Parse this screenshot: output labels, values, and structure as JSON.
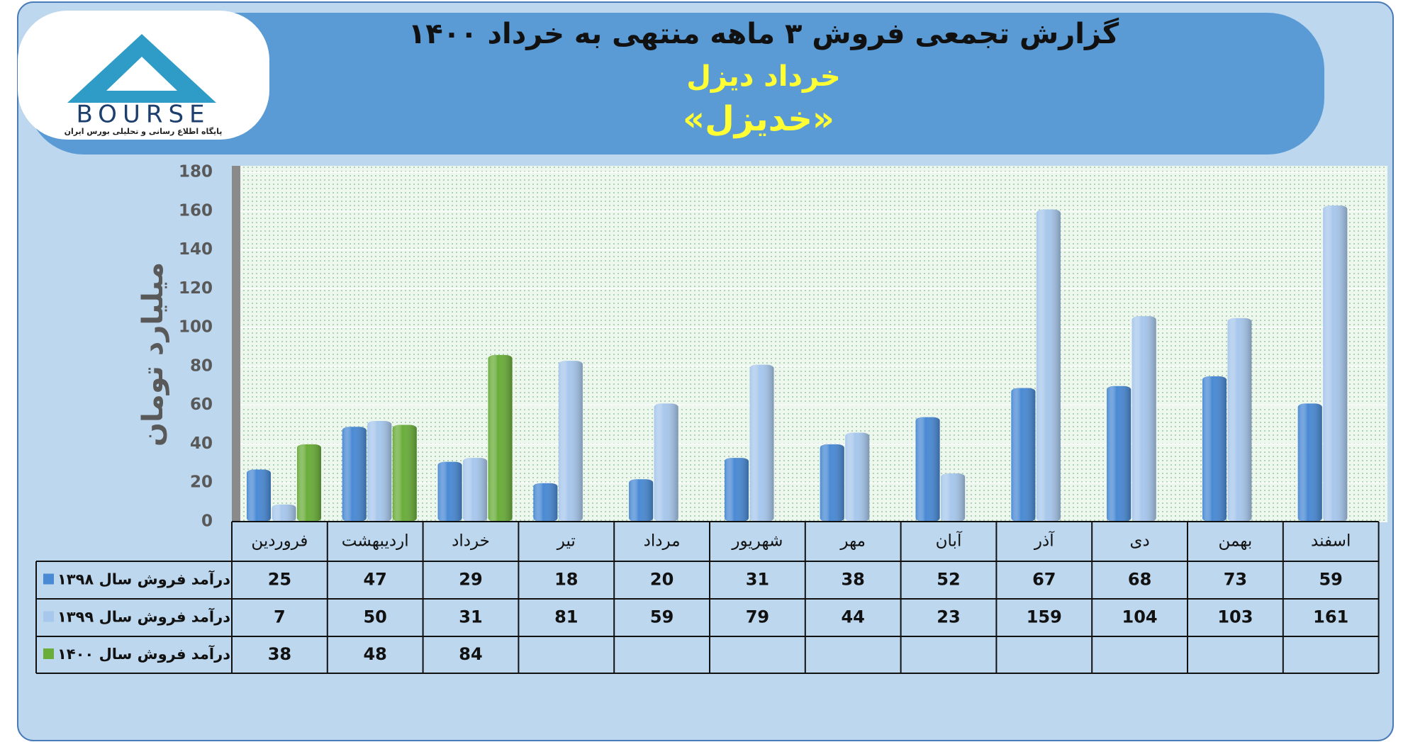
{
  "logo": {
    "text": "BOURSE",
    "caption": "پایگاه اطلاع رسانی و تحلیلی بورس ایران"
  },
  "chart_data": {
    "type": "bar",
    "title": "گزارش تجمعی فروش ۳ ماهه منتهی به خرداد ۱۴۰۰",
    "subtitle": "خرداد دیزل",
    "symbol": "«خدیزل»",
    "ylabel": "میلیارد تومان",
    "categories": [
      "فروردین",
      "اردیبهشت",
      "خرداد",
      "تیر",
      "مرداد",
      "شهریور",
      "مهر",
      "آبان",
      "آذر",
      "دی",
      "بهمن",
      "اسفند"
    ],
    "series": [
      {
        "name": "درآمد فروش سال ۱۳۹۸",
        "color": "#4a8ad4",
        "values": [
          25,
          47,
          29,
          18,
          20,
          31,
          38,
          52,
          67,
          68,
          73,
          59
        ]
      },
      {
        "name": "درآمد فروش سال ۱۳۹۹",
        "color": "#a7c7ec",
        "values": [
          7,
          50,
          31,
          81,
          59,
          79,
          44,
          23,
          159,
          104,
          103,
          161
        ]
      },
      {
        "name": "درآمد فروش سال ۱۴۰۰",
        "color": "#6aad3a",
        "values": [
          38,
          48,
          84,
          null,
          null,
          null,
          null,
          null,
          null,
          null,
          null,
          null
        ]
      }
    ],
    "ylim": [
      0,
      180
    ],
    "yticks": [
      0,
      20,
      40,
      60,
      80,
      100,
      120,
      140,
      160,
      180
    ],
    "grid": true
  }
}
